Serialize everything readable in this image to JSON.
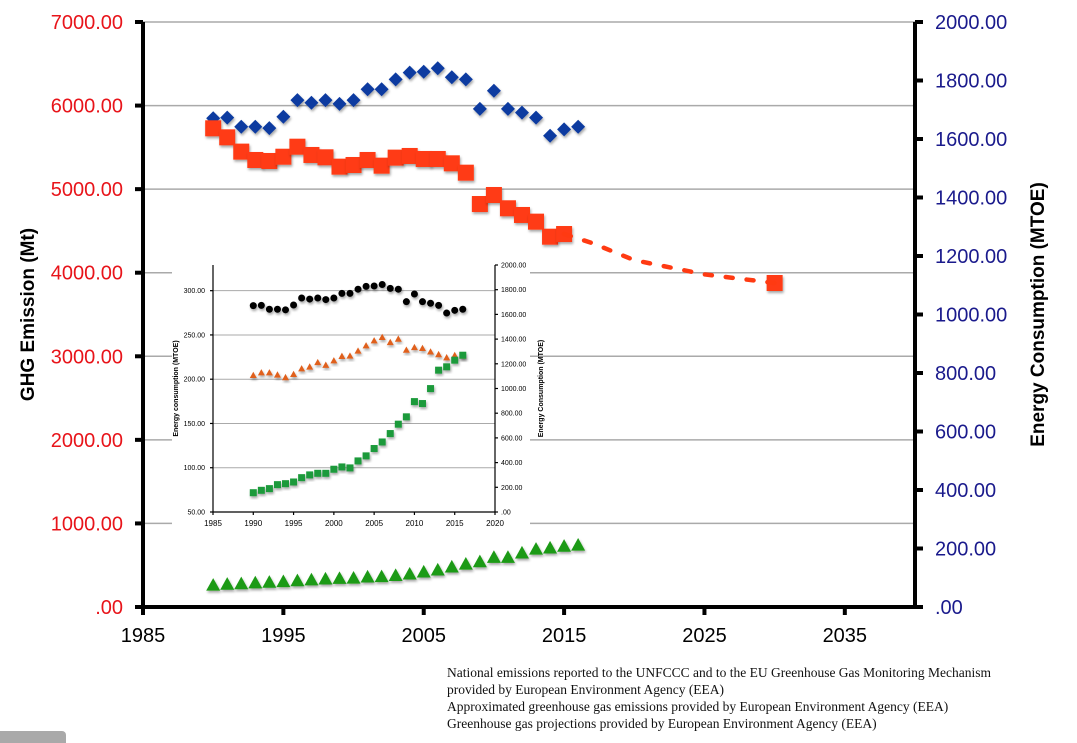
{
  "chart_data": [
    {
      "type": "scatter",
      "xlabel": "",
      "ylabel": "GHG Emission (Mt)",
      "y2label": "Energy Consumption (MTOE)",
      "xlim": [
        1985,
        2040
      ],
      "ylim": [
        0,
        7000
      ],
      "y2lim": [
        0,
        2000
      ],
      "x_ticks": [
        "1985",
        "1995",
        "2005",
        "2015",
        "2025",
        "2035"
      ],
      "y_ticks": [
        ".00",
        "1000.00",
        "2000.00",
        "3000.00",
        "4000.00",
        "5000.00",
        "6000.00",
        "7000.00"
      ],
      "y2_ticks": [
        ".00",
        "200.00",
        "400.00",
        "600.00",
        "800.00",
        "1000.00",
        "1200.00",
        "1400.00",
        "1600.00",
        "1800.00",
        "2000.00"
      ],
      "grid": "horizontal",
      "colors": {
        "left_axis": "#e8141a",
        "right_axis": "#1a1a8c",
        "ghg": "#ff3a12",
        "energy": "#0a3aa0",
        "green": "#1a9a12"
      },
      "series": [
        {
          "axis": "right",
          "marker": "diamond",
          "color": "#0a3aa0",
          "x": [
            1990,
            1991,
            1992,
            1993,
            1994,
            1995,
            1996,
            1997,
            1998,
            1999,
            2000,
            2001,
            2002,
            2003,
            2004,
            2005,
            2006,
            2007,
            2008,
            2009,
            2010,
            2011,
            2012,
            2013,
            2014,
            2015,
            2016
          ],
          "values": [
            1671,
            1673,
            1642,
            1642,
            1637,
            1676,
            1733,
            1724,
            1733,
            1720,
            1733,
            1770,
            1770,
            1804,
            1827,
            1830,
            1842,
            1811,
            1804,
            1703,
            1765,
            1703,
            1690,
            1673,
            1611,
            1633,
            1642
          ]
        },
        {
          "axis": "left",
          "marker": "square",
          "color": "#ff3a12",
          "x": [
            1990,
            1991,
            1992,
            1993,
            1994,
            1995,
            1996,
            1997,
            1998,
            1999,
            2000,
            2001,
            2002,
            2003,
            2004,
            2005,
            2006,
            2007,
            2008,
            2009,
            2010,
            2011,
            2012,
            2013,
            2014,
            2015,
            2030
          ],
          "values": [
            5728,
            5620,
            5449,
            5349,
            5337,
            5388,
            5508,
            5409,
            5381,
            5269,
            5289,
            5349,
            5281,
            5377,
            5397,
            5361,
            5361,
            5309,
            5197,
            4822,
            4930,
            4771,
            4691,
            4611,
            4431,
            4463,
            3877
          ]
        },
        {
          "axis": "left",
          "marker": "dashed-line",
          "color": "#ff3a12",
          "x": [
            2015,
            2017,
            2020,
            2025,
            2030
          ],
          "values": [
            4463,
            4355,
            4150,
            3980,
            3877
          ]
        },
        {
          "axis": "right",
          "marker": "triangle",
          "color": "#1a9a12",
          "x": [
            1990,
            1991,
            1992,
            1993,
            1994,
            1995,
            1996,
            1997,
            1998,
            1999,
            2000,
            2001,
            2002,
            2003,
            2004,
            2005,
            2006,
            2007,
            2008,
            2009,
            2010,
            2011,
            2012,
            2013,
            2014,
            2015,
            2016
          ],
          "values": [
            75,
            78,
            80,
            83,
            85,
            87,
            90,
            93,
            96,
            98,
            99,
            103,
            104,
            108,
            113,
            120,
            127,
            137,
            147,
            155,
            170,
            170,
            185,
            198,
            202,
            208,
            212
          ]
        }
      ]
    },
    {
      "type": "scatter",
      "ylabel": "Energy consumption (MTOE)",
      "y2label": "Energy Consumption (MTOE)",
      "xlim": [
        1985,
        2020
      ],
      "ylim": [
        50,
        329
      ],
      "y2lim": [
        0,
        2000
      ],
      "x_ticks": [
        "1985",
        "1990",
        "1995",
        "2000",
        "2005",
        "2010",
        "2015",
        "2020"
      ],
      "y_ticks": [
        "50.00",
        "100.00",
        "150.00",
        "200.00",
        "250.00",
        "300.00"
      ],
      "y2_ticks": [
        ".00",
        "200.00",
        "400.00",
        "600.00",
        "800.00",
        "1000.00",
        "1200.00",
        "1400.00",
        "1600.00",
        "1800.00",
        "2000.00"
      ],
      "grid": "horizontal",
      "series": [
        {
          "axis": "right",
          "marker": "circle",
          "color": "#000000",
          "x": [
            1990,
            1991,
            1992,
            1993,
            1994,
            1995,
            1996,
            1997,
            1998,
            1999,
            2000,
            2001,
            2002,
            2003,
            2004,
            2005,
            2006,
            2007,
            2008,
            2009,
            2010,
            2011,
            2012,
            2013,
            2014,
            2015,
            2016
          ],
          "values": [
            1671,
            1673,
            1642,
            1642,
            1637,
            1676,
            1733,
            1724,
            1733,
            1720,
            1733,
            1770,
            1770,
            1804,
            1827,
            1830,
            1842,
            1811,
            1804,
            1703,
            1765,
            1703,
            1690,
            1673,
            1611,
            1633,
            1642
          ]
        },
        {
          "axis": "left",
          "marker": "triangle",
          "color": "#e0601e",
          "x": [
            1990,
            1991,
            1992,
            1993,
            1994,
            1995,
            1996,
            1997,
            1998,
            1999,
            2000,
            2001,
            2002,
            2003,
            2004,
            2005,
            2006,
            2007,
            2008,
            2009,
            2010,
            2011,
            2012,
            2013,
            2014,
            2015,
            2016
          ],
          "values": [
            204.5,
            207.5,
            207.5,
            205,
            202,
            205.6,
            212,
            214,
            219,
            216,
            221,
            226,
            226.4,
            232,
            238,
            243.6,
            247.4,
            241.7,
            245.5,
            233,
            236,
            235,
            231,
            228,
            224.5,
            227,
            226.4
          ]
        },
        {
          "axis": "left",
          "marker": "square",
          "color": "#1a9a3a",
          "x": [
            1990,
            1991,
            1992,
            1993,
            1994,
            1995,
            1996,
            1997,
            1998,
            1999,
            2000,
            2001,
            2002,
            2003,
            2004,
            2005,
            2006,
            2007,
            2008,
            2009,
            2010,
            2011,
            2012,
            2013,
            2014,
            2015,
            2016
          ],
          "values": [
            71.8,
            74.5,
            76.4,
            80.9,
            82,
            83.9,
            88.8,
            91.9,
            93.7,
            93.7,
            98.3,
            100.9,
            99.8,
            107.7,
            113.4,
            121.7,
            129.1,
            138.6,
            149.2,
            157.5,
            174.7,
            172.5,
            189.4,
            210.2,
            214,
            221.5,
            227.1
          ]
        }
      ]
    }
  ],
  "sources": [
    "National emissions reported to the UNFCCC and to the EU Greenhouse Gas Monitoring Mechanism",
    "provided by European Environment Agency (EEA)",
    "Approximated greenhouse gas emissions provided by European Environment Agency (EEA)",
    "Greenhouse gas projections provided by European Environment Agency (EEA)"
  ]
}
